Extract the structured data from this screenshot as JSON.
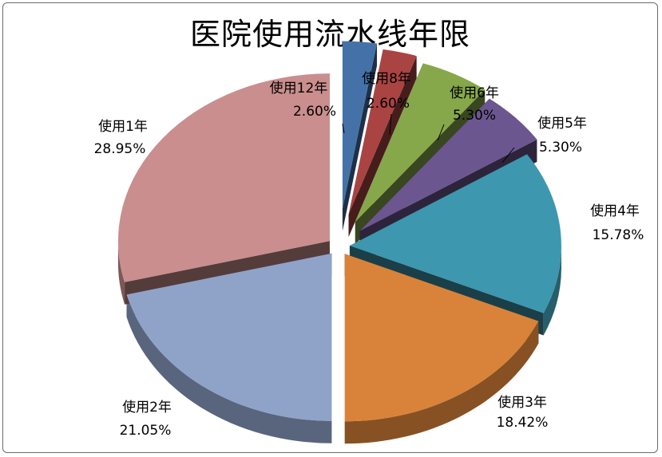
{
  "chart_data": {
    "type": "pie",
    "style": "3d-exploded",
    "title": "医院使用流水线年限",
    "legend": "none",
    "slices": [
      {
        "label": "使用12年",
        "value": 2.6,
        "value_label": "2.60%",
        "color": "#4472A8"
      },
      {
        "label": "使用8年",
        "value": 2.6,
        "value_label": "2.60%",
        "color": "#A94442"
      },
      {
        "label": "使用6年",
        "value": 5.3,
        "value_label": "5.30%",
        "color": "#86A84A"
      },
      {
        "label": "使用5年",
        "value": 5.3,
        "value_label": "5.30%",
        "color": "#6B5690"
      },
      {
        "label": "使用4年",
        "value": 15.78,
        "value_label": "15.78%",
        "color": "#3D97AE"
      },
      {
        "label": "使用3年",
        "value": 18.42,
        "value_label": "18.42%",
        "color": "#D9833A"
      },
      {
        "label": "使用2年",
        "value": 21.05,
        "value_label": "21.05%",
        "color": "#8FA3C9"
      },
      {
        "label": "使用1年",
        "value": 28.95,
        "value_label": "28.95%",
        "color": "#C98E8D"
      }
    ]
  }
}
